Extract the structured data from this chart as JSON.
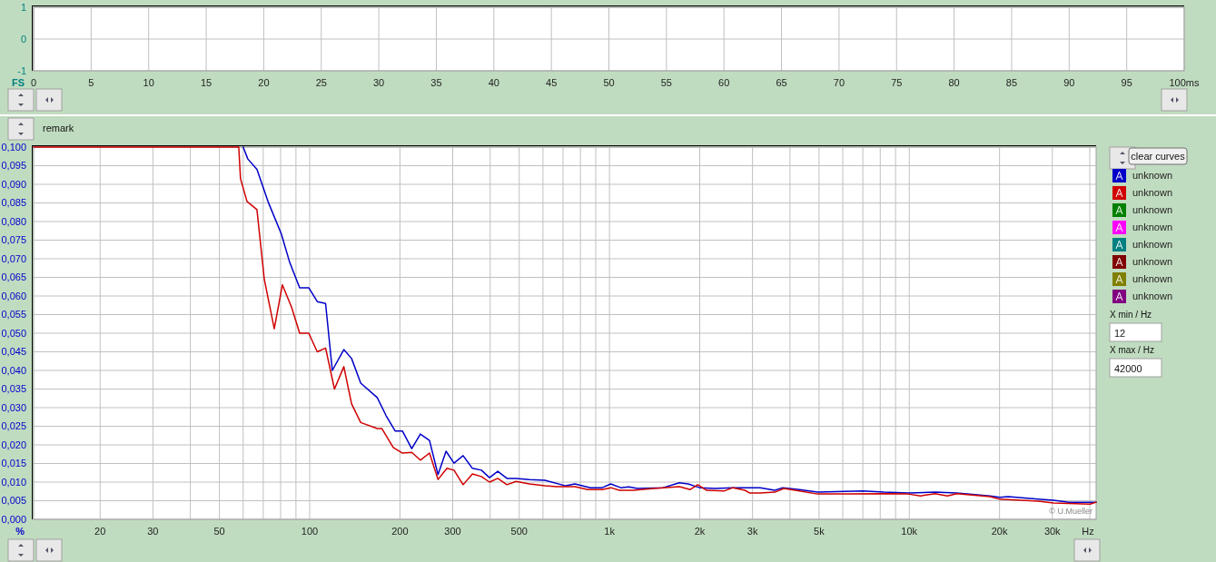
{
  "chart_data": [
    {
      "type": "line",
      "ylabel": "FS",
      "xlim": [
        0,
        100
      ],
      "ylim": [
        -1,
        1
      ],
      "xticks": [
        0,
        5,
        10,
        15,
        20,
        25,
        30,
        35,
        40,
        45,
        50,
        55,
        60,
        65,
        70,
        75,
        80,
        85,
        90,
        95,
        {
          "value": 100,
          "label": "100ms"
        }
      ],
      "yticks": [
        -1,
        0,
        1
      ],
      "grid": true
    },
    {
      "type": "line",
      "log": "x",
      "xlabel": "Hz",
      "ylabel": "%",
      "xlim": [
        12,
        42000
      ],
      "ylim": [
        0,
        0.1
      ],
      "xticks": [
        20,
        30,
        {
          "value": 40,
          "label": null
        },
        50,
        {
          "value": 60,
          "label": null
        },
        {
          "value": 70,
          "label": null
        },
        {
          "value": 80,
          "label": null
        },
        {
          "value": 90,
          "label": null
        },
        100,
        200,
        300,
        {
          "value": 400,
          "label": null
        },
        500,
        {
          "value": 600,
          "label": null
        },
        {
          "value": 700,
          "label": null
        },
        {
          "value": 800,
          "label": null
        },
        {
          "value": 900,
          "label": null
        },
        {
          "value": 1000,
          "label": "1k"
        },
        {
          "value": 2000,
          "label": "2k"
        },
        {
          "value": 3000,
          "label": "3k"
        },
        {
          "value": 4000,
          "label": null
        },
        {
          "value": 5000,
          "label": "5k"
        },
        {
          "value": 6000,
          "label": null
        },
        {
          "value": 7000,
          "label": null
        },
        {
          "value": 8000,
          "label": null
        },
        {
          "value": 9000,
          "label": null
        },
        {
          "value": 10000,
          "label": "10k"
        },
        {
          "value": 20000,
          "label": "20k"
        },
        {
          "value": 30000,
          "label": "30k"
        },
        {
          "value": 40000,
          "label": null
        }
      ],
      "yticks": [
        {
          "value": 0,
          "label": "0,000"
        },
        {
          "value": 0.005,
          "label": "0,005"
        },
        {
          "value": 0.01,
          "label": "0,010"
        },
        {
          "value": 0.015,
          "label": "0,015"
        },
        {
          "value": 0.02,
          "label": "0,020"
        },
        {
          "value": 0.025,
          "label": "0,025"
        },
        {
          "value": 0.03,
          "label": "0,030"
        },
        {
          "value": 0.035,
          "label": "0,035"
        },
        {
          "value": 0.04,
          "label": "0,040"
        },
        {
          "value": 0.045,
          "label": "0,045"
        },
        {
          "value": 0.05,
          "label": "0,050"
        },
        {
          "value": 0.055,
          "label": "0,055"
        },
        {
          "value": 0.06,
          "label": "0,060"
        },
        {
          "value": 0.065,
          "label": "0,065"
        },
        {
          "value": 0.07,
          "label": "0,070"
        },
        {
          "value": 0.075,
          "label": "0,075"
        },
        {
          "value": 0.08,
          "label": "0,080"
        },
        {
          "value": 0.085,
          "label": "0,085"
        },
        {
          "value": 0.09,
          "label": "0,090"
        },
        {
          "value": 0.095,
          "label": "0,095"
        },
        {
          "value": 0.1,
          "label": "0,100"
        }
      ],
      "grid": true,
      "legend": "right",
      "marker": "none",
      "line_style": "solid",
      "annotations": [
        "remark",
        "clear curves",
        "X min / Hz",
        "12",
        "X max / Hz",
        "42000",
        "© U.Mueller"
      ],
      "series": [
        {
          "name": "unknown",
          "color": "#0000c8",
          "x": [
            60,
            62.2,
            66.7,
            72.6,
            80.5,
            85.8,
            92.6,
            99.3,
            106,
            113,
            119,
            130,
            138,
            148,
            168,
            180,
            193,
            204,
            219,
            234,
            251,
            268,
            285,
            303,
            325,
            349,
            374,
            398,
            424,
            455,
            488,
            541,
            609,
            715,
            767,
            864,
            946,
            1010,
            1090,
            1160,
            1240,
            1510,
            1710,
            1830,
            2000,
            2250,
            2580,
            2830,
            3180,
            3560,
            3790,
            4300,
            4940,
            7010,
            8230,
            9930,
            12200,
            14400,
            18600,
            20000,
            21400,
            26900,
            30300,
            34100,
            42000
          ],
          "values": [
            0.1,
            0.0968,
            0.094,
            0.0854,
            0.0766,
            0.069,
            0.0622,
            0.0622,
            0.0585,
            0.058,
            0.04,
            0.0456,
            0.0432,
            0.0366,
            0.0327,
            0.0278,
            0.0237,
            0.0237,
            0.019,
            0.0229,
            0.0212,
            0.012,
            0.0183,
            0.0151,
            0.0171,
            0.0137,
            0.0132,
            0.0112,
            0.0129,
            0.011,
            0.011,
            0.0107,
            0.0105,
            0.009,
            0.0095,
            0.0085,
            0.0085,
            0.0095,
            0.0085,
            0.0087,
            0.0083,
            0.0085,
            0.0098,
            0.0095,
            0.0085,
            0.0083,
            0.0085,
            0.0085,
            0.0085,
            0.0078,
            0.0085,
            0.008,
            0.0073,
            0.0076,
            0.0073,
            0.0071,
            0.0073,
            0.0071,
            0.0063,
            0.0059,
            0.0061,
            0.0054,
            0.0051,
            0.0046,
            0.0046
          ]
        },
        {
          "name": "unknown",
          "color": "#d00000",
          "x": [
            12,
            58,
            58.8,
            61.8,
            66.7,
            70.6,
            76.2,
            81.1,
            87,
            92.6,
            99.3,
            106,
            113,
            121,
            130,
            138,
            148,
            168,
            174,
            190,
            204,
            219,
            234,
            251,
            268,
            287,
            303,
            325,
            349,
            374,
            398,
            424,
            455,
            488,
            541,
            609,
            667,
            767,
            846,
            946,
            1010,
            1080,
            1200,
            1410,
            1710,
            1860,
            1970,
            2110,
            2410,
            2580,
            2830,
            2930,
            3180,
            3560,
            3820,
            4300,
            4940,
            6220,
            8230,
            9930,
            10900,
            12200,
            13400,
            14400,
            18600,
            20000,
            26900,
            30300,
            40100,
            42000
          ],
          "values": [
            0.1,
            0.1,
            0.0915,
            0.0854,
            0.0832,
            0.0644,
            0.0512,
            0.063,
            0.057,
            0.05,
            0.05,
            0.045,
            0.046,
            0.035,
            0.041,
            0.031,
            0.026,
            0.0244,
            0.0244,
            0.0193,
            0.0178,
            0.018,
            0.0159,
            0.0178,
            0.0107,
            0.0137,
            0.0132,
            0.0093,
            0.0122,
            0.0115,
            0.01,
            0.011,
            0.0093,
            0.0102,
            0.0095,
            0.009,
            0.0088,
            0.0088,
            0.008,
            0.008,
            0.0085,
            0.0078,
            0.0078,
            0.0083,
            0.0088,
            0.008,
            0.0093,
            0.0078,
            0.0076,
            0.0085,
            0.0078,
            0.0071,
            0.0071,
            0.0073,
            0.0083,
            0.0076,
            0.0068,
            0.0068,
            0.0069,
            0.0068,
            0.0063,
            0.0069,
            0.0063,
            0.0069,
            0.0061,
            0.0054,
            0.0049,
            0.0044,
            0.0041,
            0.0046
          ]
        },
        {
          "name": "unknown",
          "color": "#008000"
        },
        {
          "name": "unknown",
          "color": "#ff00ff"
        },
        {
          "name": "unknown",
          "color": "#008080"
        },
        {
          "name": "unknown",
          "color": "#800000"
        },
        {
          "name": "unknown",
          "color": "#808000"
        },
        {
          "name": "unknown",
          "color": "#800080"
        }
      ]
    }
  ]
}
